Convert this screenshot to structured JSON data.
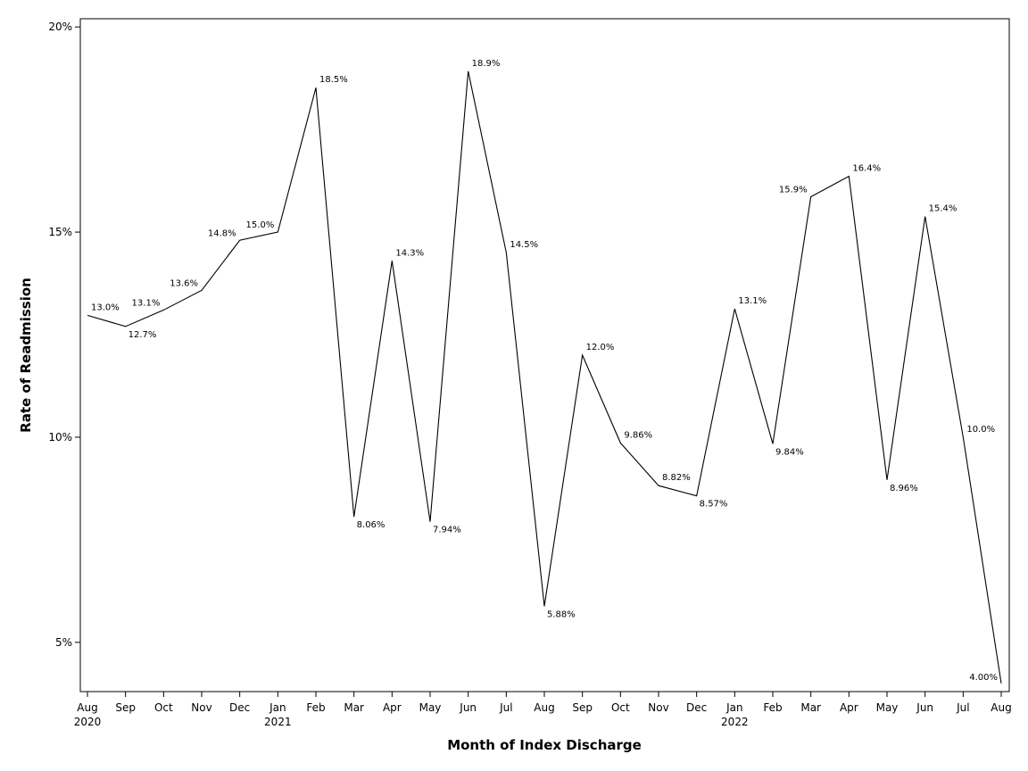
{
  "chart_data": {
    "type": "line",
    "xlabel": "Month of Index Discharge",
    "ylabel": "Rate of Readmission",
    "ylim": [
      3.8,
      20.2
    ],
    "yticks": [
      {
        "value": 5,
        "label": "5%"
      },
      {
        "value": 10,
        "label": "10%"
      },
      {
        "value": 15,
        "label": "15%"
      },
      {
        "value": 20,
        "label": "20%"
      }
    ],
    "grid": false,
    "categories": [
      "Aug",
      "Sep",
      "Oct",
      "Nov",
      "Dec",
      "Jan",
      "Feb",
      "Mar",
      "Apr",
      "May",
      "Jun",
      "Jul",
      "Aug",
      "Sep",
      "Oct",
      "Nov",
      "Dec",
      "Jan",
      "Feb",
      "Mar",
      "Apr",
      "May",
      "Jun",
      "Jul",
      "Aug"
    ],
    "year_labels": [
      {
        "index": 0,
        "label": "2020"
      },
      {
        "index": 5,
        "label": "2021"
      },
      {
        "index": 17,
        "label": "2022"
      }
    ],
    "points": [
      {
        "month": "Aug 2020",
        "value": 12.97,
        "label": "13.0%"
      },
      {
        "month": "Sep 2020",
        "value": 12.7,
        "label": "12.7%"
      },
      {
        "month": "Oct 2020",
        "value": 13.1,
        "label": "13.1%"
      },
      {
        "month": "Nov 2020",
        "value": 13.58,
        "label": "13.6%"
      },
      {
        "month": "Dec 2020",
        "value": 14.8,
        "label": "14.8%"
      },
      {
        "month": "Jan 2021",
        "value": 15.0,
        "label": "15.0%"
      },
      {
        "month": "Feb 2021",
        "value": 18.52,
        "label": "18.5%"
      },
      {
        "month": "Mar 2021",
        "value": 8.06,
        "label": "8.06%"
      },
      {
        "month": "Apr 2021",
        "value": 14.3,
        "label": "14.3%"
      },
      {
        "month": "May 2021",
        "value": 7.94,
        "label": "7.94%"
      },
      {
        "month": "Jun 2021",
        "value": 18.92,
        "label": "18.9%"
      },
      {
        "month": "Jul 2021",
        "value": 14.5,
        "label": "14.5%"
      },
      {
        "month": "Aug 2021",
        "value": 5.88,
        "label": "5.88%"
      },
      {
        "month": "Sep 2021",
        "value": 12.0,
        "label": "12.0%"
      },
      {
        "month": "Oct 2021",
        "value": 9.86,
        "label": "9.86%"
      },
      {
        "month": "Nov 2021",
        "value": 8.82,
        "label": "8.82%"
      },
      {
        "month": "Dec 2021",
        "value": 8.57,
        "label": "8.57%"
      },
      {
        "month": "Jan 2022",
        "value": 13.13,
        "label": "13.1%"
      },
      {
        "month": "Feb 2022",
        "value": 9.84,
        "label": "9.84%"
      },
      {
        "month": "Mar 2022",
        "value": 15.86,
        "label": "15.9%"
      },
      {
        "month": "Apr 2022",
        "value": 16.36,
        "label": "16.4%"
      },
      {
        "month": "May 2022",
        "value": 8.96,
        "label": "8.96%"
      },
      {
        "month": "Jun 2022",
        "value": 15.38,
        "label": "15.4%"
      },
      {
        "month": "Jul 2022",
        "value": 10.0,
        "label": "10.0%"
      },
      {
        "month": "Aug 2022",
        "value": 4.0,
        "label": "4.00%"
      }
    ]
  }
}
